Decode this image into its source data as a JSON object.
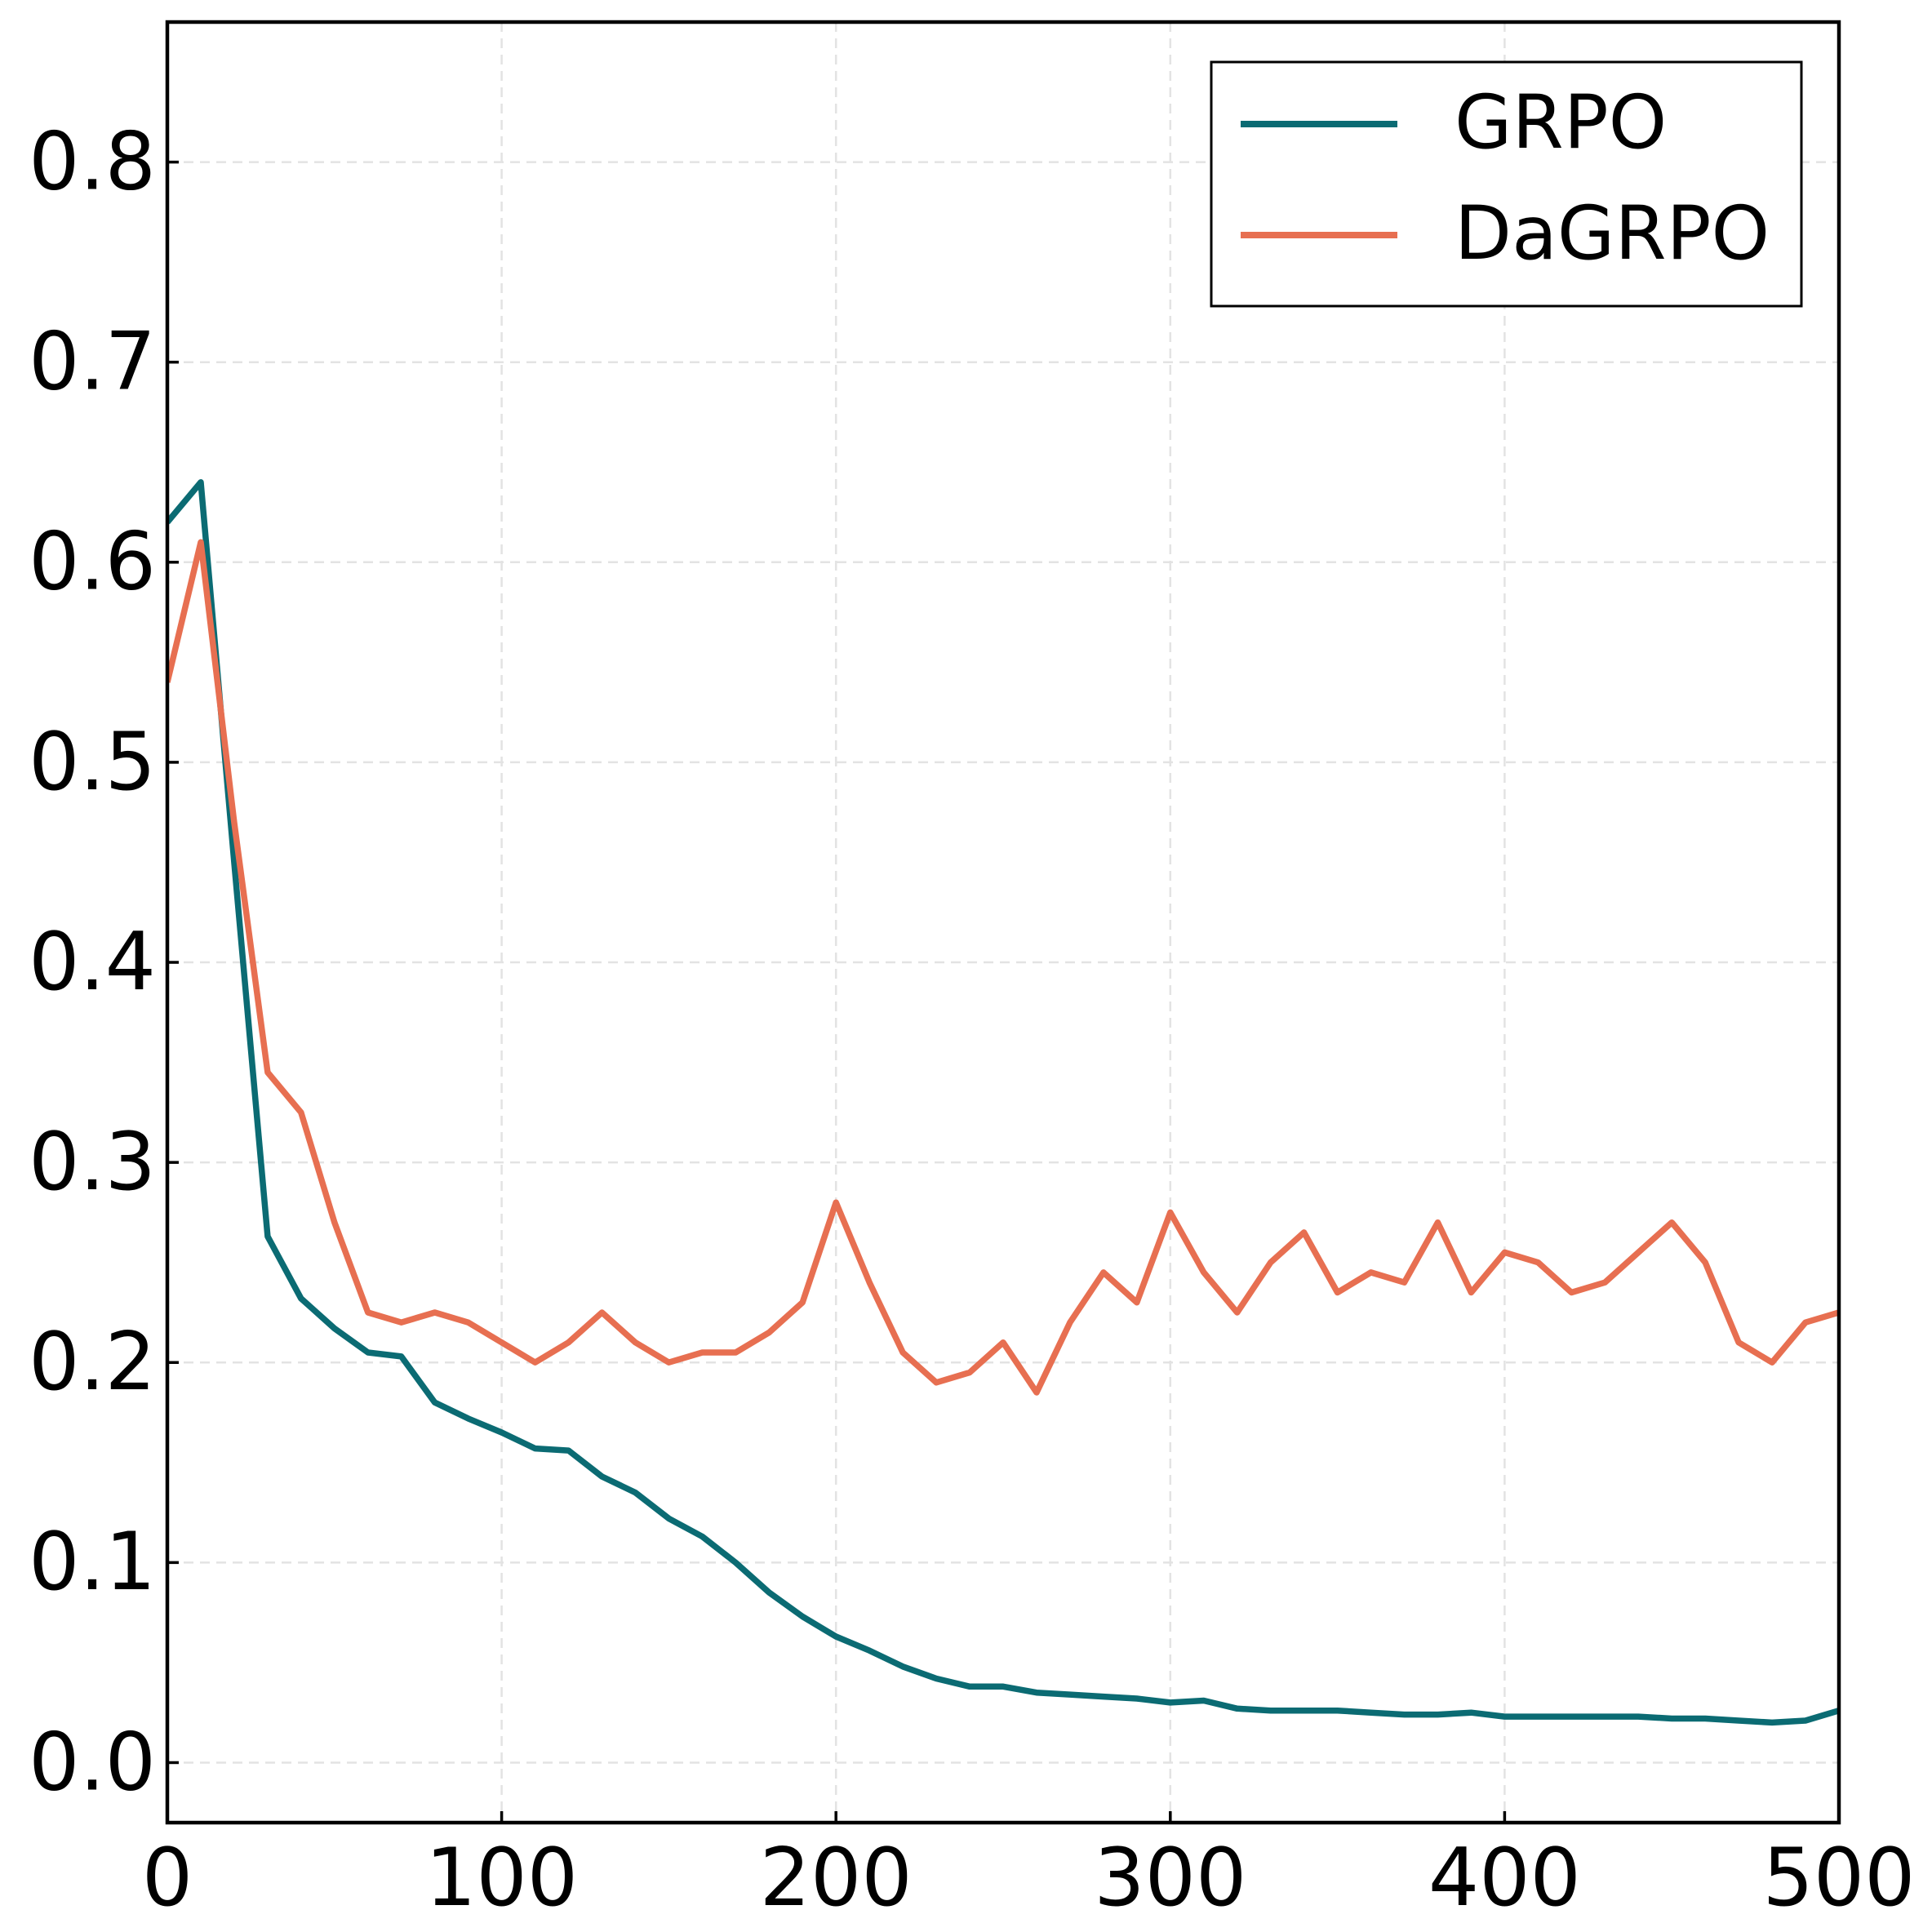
{
  "chart_data": {
    "type": "line",
    "x": [
      0,
      10,
      20,
      30,
      40,
      50,
      60,
      70,
      80,
      90,
      100,
      110,
      120,
      130,
      140,
      150,
      160,
      170,
      180,
      190,
      200,
      210,
      220,
      230,
      240,
      250,
      260,
      270,
      280,
      290,
      300,
      310,
      320,
      330,
      340,
      350,
      360,
      370,
      380,
      390,
      400,
      410,
      420,
      430,
      440,
      450,
      460,
      470,
      480,
      490,
      500
    ],
    "series": [
      {
        "name": "GRPO",
        "color": "#0b6b73",
        "values": [
          0.62,
          0.64,
          0.45,
          0.263,
          0.232,
          0.217,
          0.205,
          0.203,
          0.18,
          0.172,
          0.165,
          0.157,
          0.156,
          0.143,
          0.135,
          0.122,
          0.113,
          0.1,
          0.085,
          0.073,
          0.063,
          0.056,
          0.048,
          0.042,
          0.038,
          0.038,
          0.035,
          0.034,
          0.033,
          0.032,
          0.03,
          0.031,
          0.027,
          0.026,
          0.026,
          0.026,
          0.025,
          0.024,
          0.024,
          0.025,
          0.023,
          0.023,
          0.023,
          0.023,
          0.023,
          0.022,
          0.022,
          0.021,
          0.02,
          0.021,
          0.026
        ]
      },
      {
        "name": "DaGRPO",
        "color": "#e76f51",
        "values": [
          0.54,
          0.61,
          0.47,
          0.345,
          0.325,
          0.27,
          0.225,
          0.22,
          0.225,
          0.22,
          0.21,
          0.2,
          0.21,
          0.225,
          0.21,
          0.2,
          0.205,
          0.205,
          0.215,
          0.23,
          0.28,
          0.24,
          0.205,
          0.19,
          0.195,
          0.21,
          0.185,
          0.22,
          0.245,
          0.23,
          0.275,
          0.245,
          0.225,
          0.25,
          0.265,
          0.235,
          0.245,
          0.24,
          0.27,
          0.235,
          0.255,
          0.25,
          0.235,
          0.24,
          0.255,
          0.27,
          0.25,
          0.21,
          0.2,
          0.22,
          0.225
        ]
      }
    ],
    "xlim": [
      0,
      500
    ],
    "xticks": [
      0,
      100,
      200,
      300,
      400,
      500
    ],
    "ylim": [
      -0.03,
      0.87
    ],
    "yticks": [
      {
        "value": 0,
        "label": "0.0"
      },
      0.1,
      0.2,
      0.3,
      0.4,
      0.5,
      0.6,
      0.7,
      0.8
    ],
    "grid": true,
    "legend": "upper right"
  }
}
